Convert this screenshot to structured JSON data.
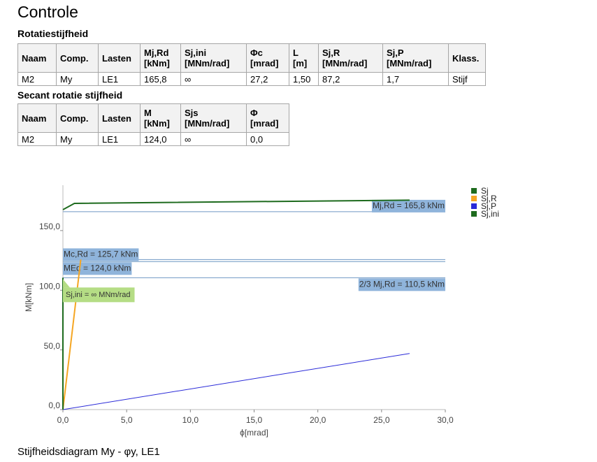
{
  "title": "Controle",
  "sections": [
    {
      "title": "Rotatiestijfheid",
      "table": {
        "header": [
          [
            "Naam"
          ],
          [
            "Comp."
          ],
          [
            "Lasten"
          ],
          [
            "Mj,Rd",
            "[kNm]"
          ],
          [
            "Sj,ini",
            "[MNm/rad]"
          ],
          [
            "Φc",
            "[mrad]"
          ],
          [
            "L",
            "[m]"
          ],
          [
            "Sj,R",
            "[MNm/rad]"
          ],
          [
            "Sj,P",
            "[MNm/rad]"
          ],
          [
            "Klass."
          ]
        ],
        "rows": [
          [
            "M2",
            "My",
            "LE1",
            "165,8",
            "∞",
            "27,2",
            "1,50",
            "87,2",
            "1,7",
            "Stijf"
          ]
        ]
      }
    },
    {
      "title": "Secant rotatie stijfheid",
      "table": {
        "header": [
          [
            "Naam"
          ],
          [
            "Comp."
          ],
          [
            "Lasten"
          ],
          [
            "M",
            "[kNm]"
          ],
          [
            "Sjs",
            "[MNm/rad]"
          ],
          [
            "Φ",
            "[mrad]"
          ]
        ],
        "rows": [
          [
            "M2",
            "My",
            "LE1",
            "124,0",
            "∞",
            "0,0"
          ]
        ]
      }
    }
  ],
  "chart_data": {
    "type": "line",
    "xlabel": "ϕ[mrad]",
    "ylabel": "M[kNm]",
    "xlim": [
      0,
      30
    ],
    "ylim": [
      0,
      188
    ],
    "xticks": [
      {
        "value": 0,
        "label": "0,0"
      },
      {
        "value": 5,
        "label": "5,0"
      },
      {
        "value": 10,
        "label": "10,0"
      },
      {
        "value": 15,
        "label": "15,0"
      },
      {
        "value": 20,
        "label": "20,0"
      },
      {
        "value": 25,
        "label": "25,0"
      },
      {
        "value": 30,
        "label": "30,0"
      }
    ],
    "yticks": [
      {
        "value": 0,
        "label": "0,0"
      },
      {
        "value": 50,
        "label": "50,0"
      },
      {
        "value": 100,
        "label": "100,0"
      },
      {
        "value": 150,
        "label": "150,0"
      }
    ],
    "series": [
      {
        "name": "Sj",
        "color": "#1e6b1e",
        "x": [
          0,
          0.9,
          27.2
        ],
        "values": [
          167.5,
          172.8,
          175.5
        ]
      },
      {
        "name": "Sj,R",
        "color": "#f5a623",
        "x": [
          0,
          1.4
        ],
        "values": [
          0,
          125.7
        ]
      },
      {
        "name": "Sj,P",
        "color": "#2a2ad8",
        "x": [
          0,
          27.2
        ],
        "values": [
          0,
          47
        ]
      },
      {
        "name": "Sj,ini",
        "color": "#1e6b1e",
        "x": [
          0,
          0
        ],
        "values": [
          0,
          110.5
        ]
      }
    ],
    "reference_lines": [
      {
        "label": "Mj,Rd = 165,8 kNm",
        "value": 165.8
      },
      {
        "label": "Mc,Rd = 125,7 kNm",
        "value": 125.7
      },
      {
        "label": "MEd = 124,0 kNm",
        "value": 124.0
      },
      {
        "label": "2/3 Mj,Rd = 110,5 kNm",
        "value": 110.5
      }
    ],
    "annotation": "Sj,ini = ∞ MNm/rad",
    "legend": "right"
  },
  "caption": "Stijfheidsdiagram My - φy, LE1"
}
